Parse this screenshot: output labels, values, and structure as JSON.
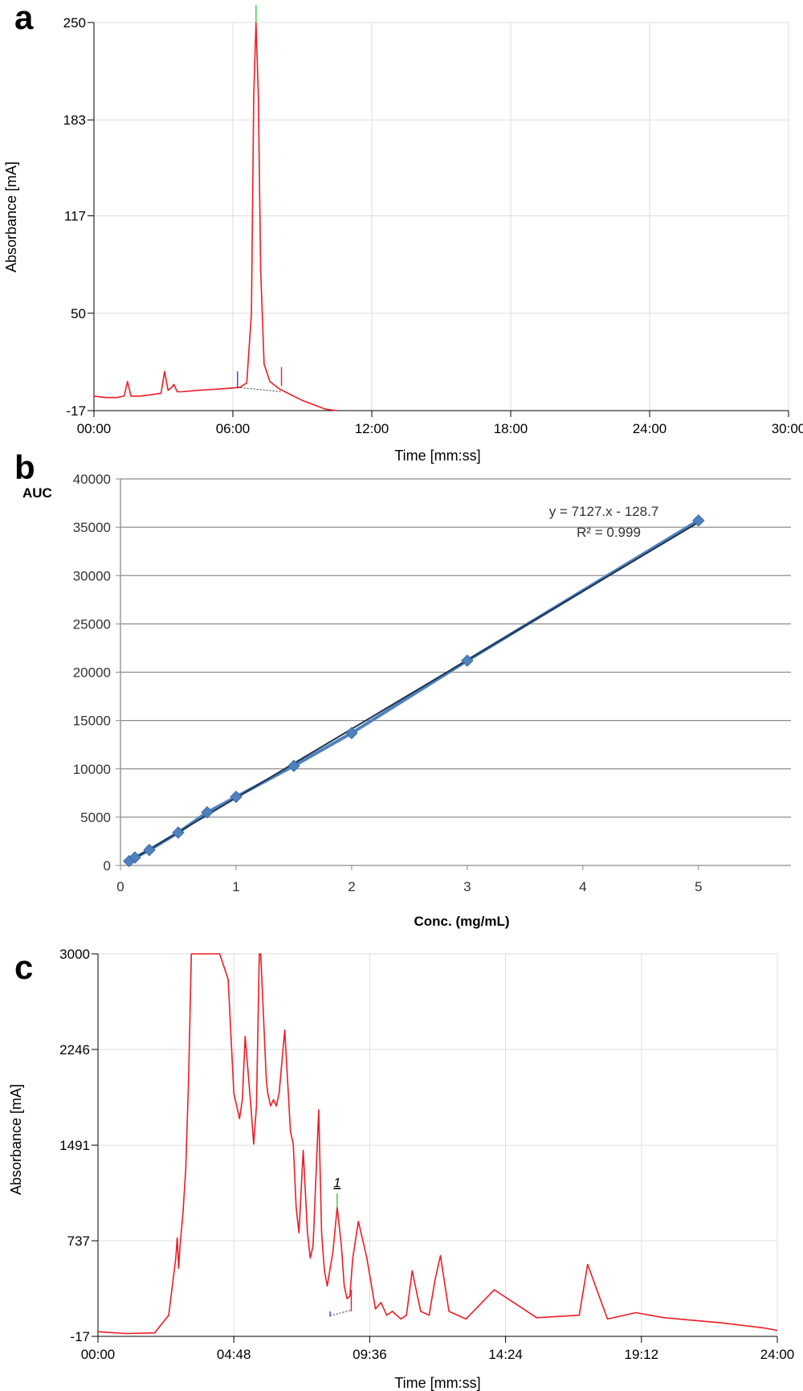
{
  "figure": {
    "panels": [
      {
        "letter": "a"
      },
      {
        "letter": "b"
      },
      {
        "letter": "c"
      }
    ]
  },
  "chart_data": [
    {
      "type": "line",
      "panel": "a",
      "xlabel": "Time [mm:ss]",
      "ylabel": "Absorbance [mA]",
      "xlim": [
        0,
        30
      ],
      "ylim": [
        -17,
        250
      ],
      "x_ticks": [
        "00:00",
        "06:00",
        "12:00",
        "18:00",
        "24:00",
        "30:00"
      ],
      "y_ticks": [
        "-17",
        "50",
        "117",
        "183",
        "250"
      ],
      "grid": true,
      "line_color": "#ee1c24",
      "series": [
        {
          "x": [
            0.0,
            0.5,
            1.0,
            1.3,
            1.45,
            1.6,
            1.75,
            2.0,
            2.5,
            2.9,
            3.05,
            3.2,
            3.35,
            3.45,
            3.6,
            3.8,
            4.5,
            5.5,
            6.3,
            6.6,
            6.8,
            6.9,
            7.0,
            7.1,
            7.2,
            7.35,
            7.6,
            8.0,
            8.5,
            9.0,
            9.5,
            10.0,
            10.5
          ],
          "y": [
            -7,
            -8,
            -8,
            -7,
            3,
            -7,
            -7,
            -7,
            -6,
            -5,
            10,
            -3,
            -1,
            1,
            -4,
            -4,
            -3,
            -2,
            -1,
            2,
            50,
            200,
            250,
            200,
            80,
            15,
            3,
            -2,
            -6,
            -10,
            -13,
            -16,
            -17
          ]
        }
      ],
      "markers": [
        {
          "x": 6.2,
          "y0": -1,
          "y1": 10,
          "color": "#3b3bd6"
        },
        {
          "x": 7.0,
          "y0": 250,
          "y1": 262,
          "color": "#3ec83e"
        },
        {
          "x": 8.1,
          "y0": 0,
          "y1": 13,
          "color": "#ee1c24"
        }
      ],
      "baseline": {
        "x0": 6.2,
        "y0": -1,
        "x1": 8.1,
        "y1": -4
      }
    },
    {
      "type": "scatter",
      "panel": "b",
      "xlabel": "Conc. (mg/mL)",
      "ylabel": "AUC",
      "xlim": [
        0,
        5.8
      ],
      "ylim": [
        0,
        40000
      ],
      "x_ticks": [
        "0",
        "1",
        "2",
        "3",
        "4",
        "5"
      ],
      "y_ticks": [
        "0",
        "5000",
        "10000",
        "15000",
        "20000",
        "25000",
        "30000",
        "35000",
        "40000"
      ],
      "grid": true,
      "series": [
        {
          "x": [
            0.075,
            0.125,
            0.25,
            0.5,
            0.75,
            1.0,
            1.5,
            2.0,
            3.0,
            5.0
          ],
          "y": [
            450,
            820,
            1600,
            3400,
            5500,
            7100,
            10300,
            13700,
            21200,
            35700
          ]
        }
      ],
      "trendline": {
        "slope": 7127,
        "intercept": -128.7,
        "x0": 0.05,
        "x1": 5.0
      },
      "equation": "y = 7127.x - 128.7",
      "r_squared": "R² = 0.999",
      "marker_color": "#4f81bd"
    },
    {
      "type": "line",
      "panel": "c",
      "xlabel": "Time [mm:ss]",
      "ylabel": "Absorbance [mA]",
      "xlim": [
        0,
        24
      ],
      "ylim": [
        -17,
        3000
      ],
      "x_ticks": [
        "00:00",
        "04:48",
        "09:36",
        "14:24",
        "19:12",
        "24:00"
      ],
      "y_ticks": [
        "-17",
        "737",
        "1491",
        "2246",
        "3000"
      ],
      "grid": true,
      "line_color": "#ee1c24",
      "peak_label": "1",
      "series": [
        {
          "x": [
            0.0,
            1.0,
            2.0,
            2.5,
            2.75,
            2.8,
            2.85,
            2.9,
            3.0,
            3.1,
            3.2,
            3.3,
            3.4,
            3.7,
            4.3,
            4.6,
            4.8,
            5.0,
            5.1,
            5.2,
            5.4,
            5.5,
            5.6,
            5.7,
            5.75,
            5.85,
            5.95,
            6.0,
            6.1,
            6.2,
            6.3,
            6.4,
            6.6,
            6.8,
            6.9,
            7.0,
            7.1,
            7.25,
            7.4,
            7.5,
            7.6,
            7.8,
            7.9,
            8.0,
            8.1,
            8.3,
            8.45,
            8.6,
            8.7,
            8.8,
            8.9,
            9.0,
            9.2,
            9.5,
            9.8,
            10.0,
            10.2,
            10.4,
            10.7,
            10.9,
            11.1,
            11.4,
            11.7,
            11.9,
            12.1,
            12.4,
            13.0,
            14.0,
            15.5,
            17.0,
            17.3,
            18.0,
            19.0,
            20.0,
            22.0,
            23.5,
            24.0
          ],
          "y": [
            20,
            5,
            10,
            150,
            600,
            760,
            520,
            700,
            950,
            1300,
            2000,
            3000,
            3000,
            3000,
            3000,
            2800,
            1900,
            1700,
            1850,
            2350,
            1800,
            1500,
            1800,
            3000,
            3000,
            2500,
            2000,
            1900,
            1800,
            1850,
            1800,
            1900,
            2400,
            1600,
            1500,
            1000,
            800,
            1450,
            800,
            600,
            700,
            1770,
            800,
            500,
            380,
            650,
            1000,
            700,
            380,
            280,
            300,
            600,
            890,
            600,
            200,
            250,
            150,
            180,
            120,
            150,
            500,
            180,
            150,
            420,
            620,
            180,
            120,
            350,
            130,
            150,
            550,
            120,
            170,
            130,
            90,
            50,
            30
          ]
        }
      ],
      "markers": [
        {
          "x": 8.2,
          "y0": 140,
          "y1": 180,
          "color": "#3b3bd6"
        },
        {
          "x": 8.45,
          "y0": 1000,
          "y1": 1110,
          "color": "#3ec83e"
        },
        {
          "x": 8.95,
          "y0": 180,
          "y1": 350,
          "color": "#ee1c24"
        }
      ],
      "baseline": {
        "x0": 8.2,
        "y0": 145,
        "x1": 8.95,
        "y1": 190
      }
    }
  ]
}
